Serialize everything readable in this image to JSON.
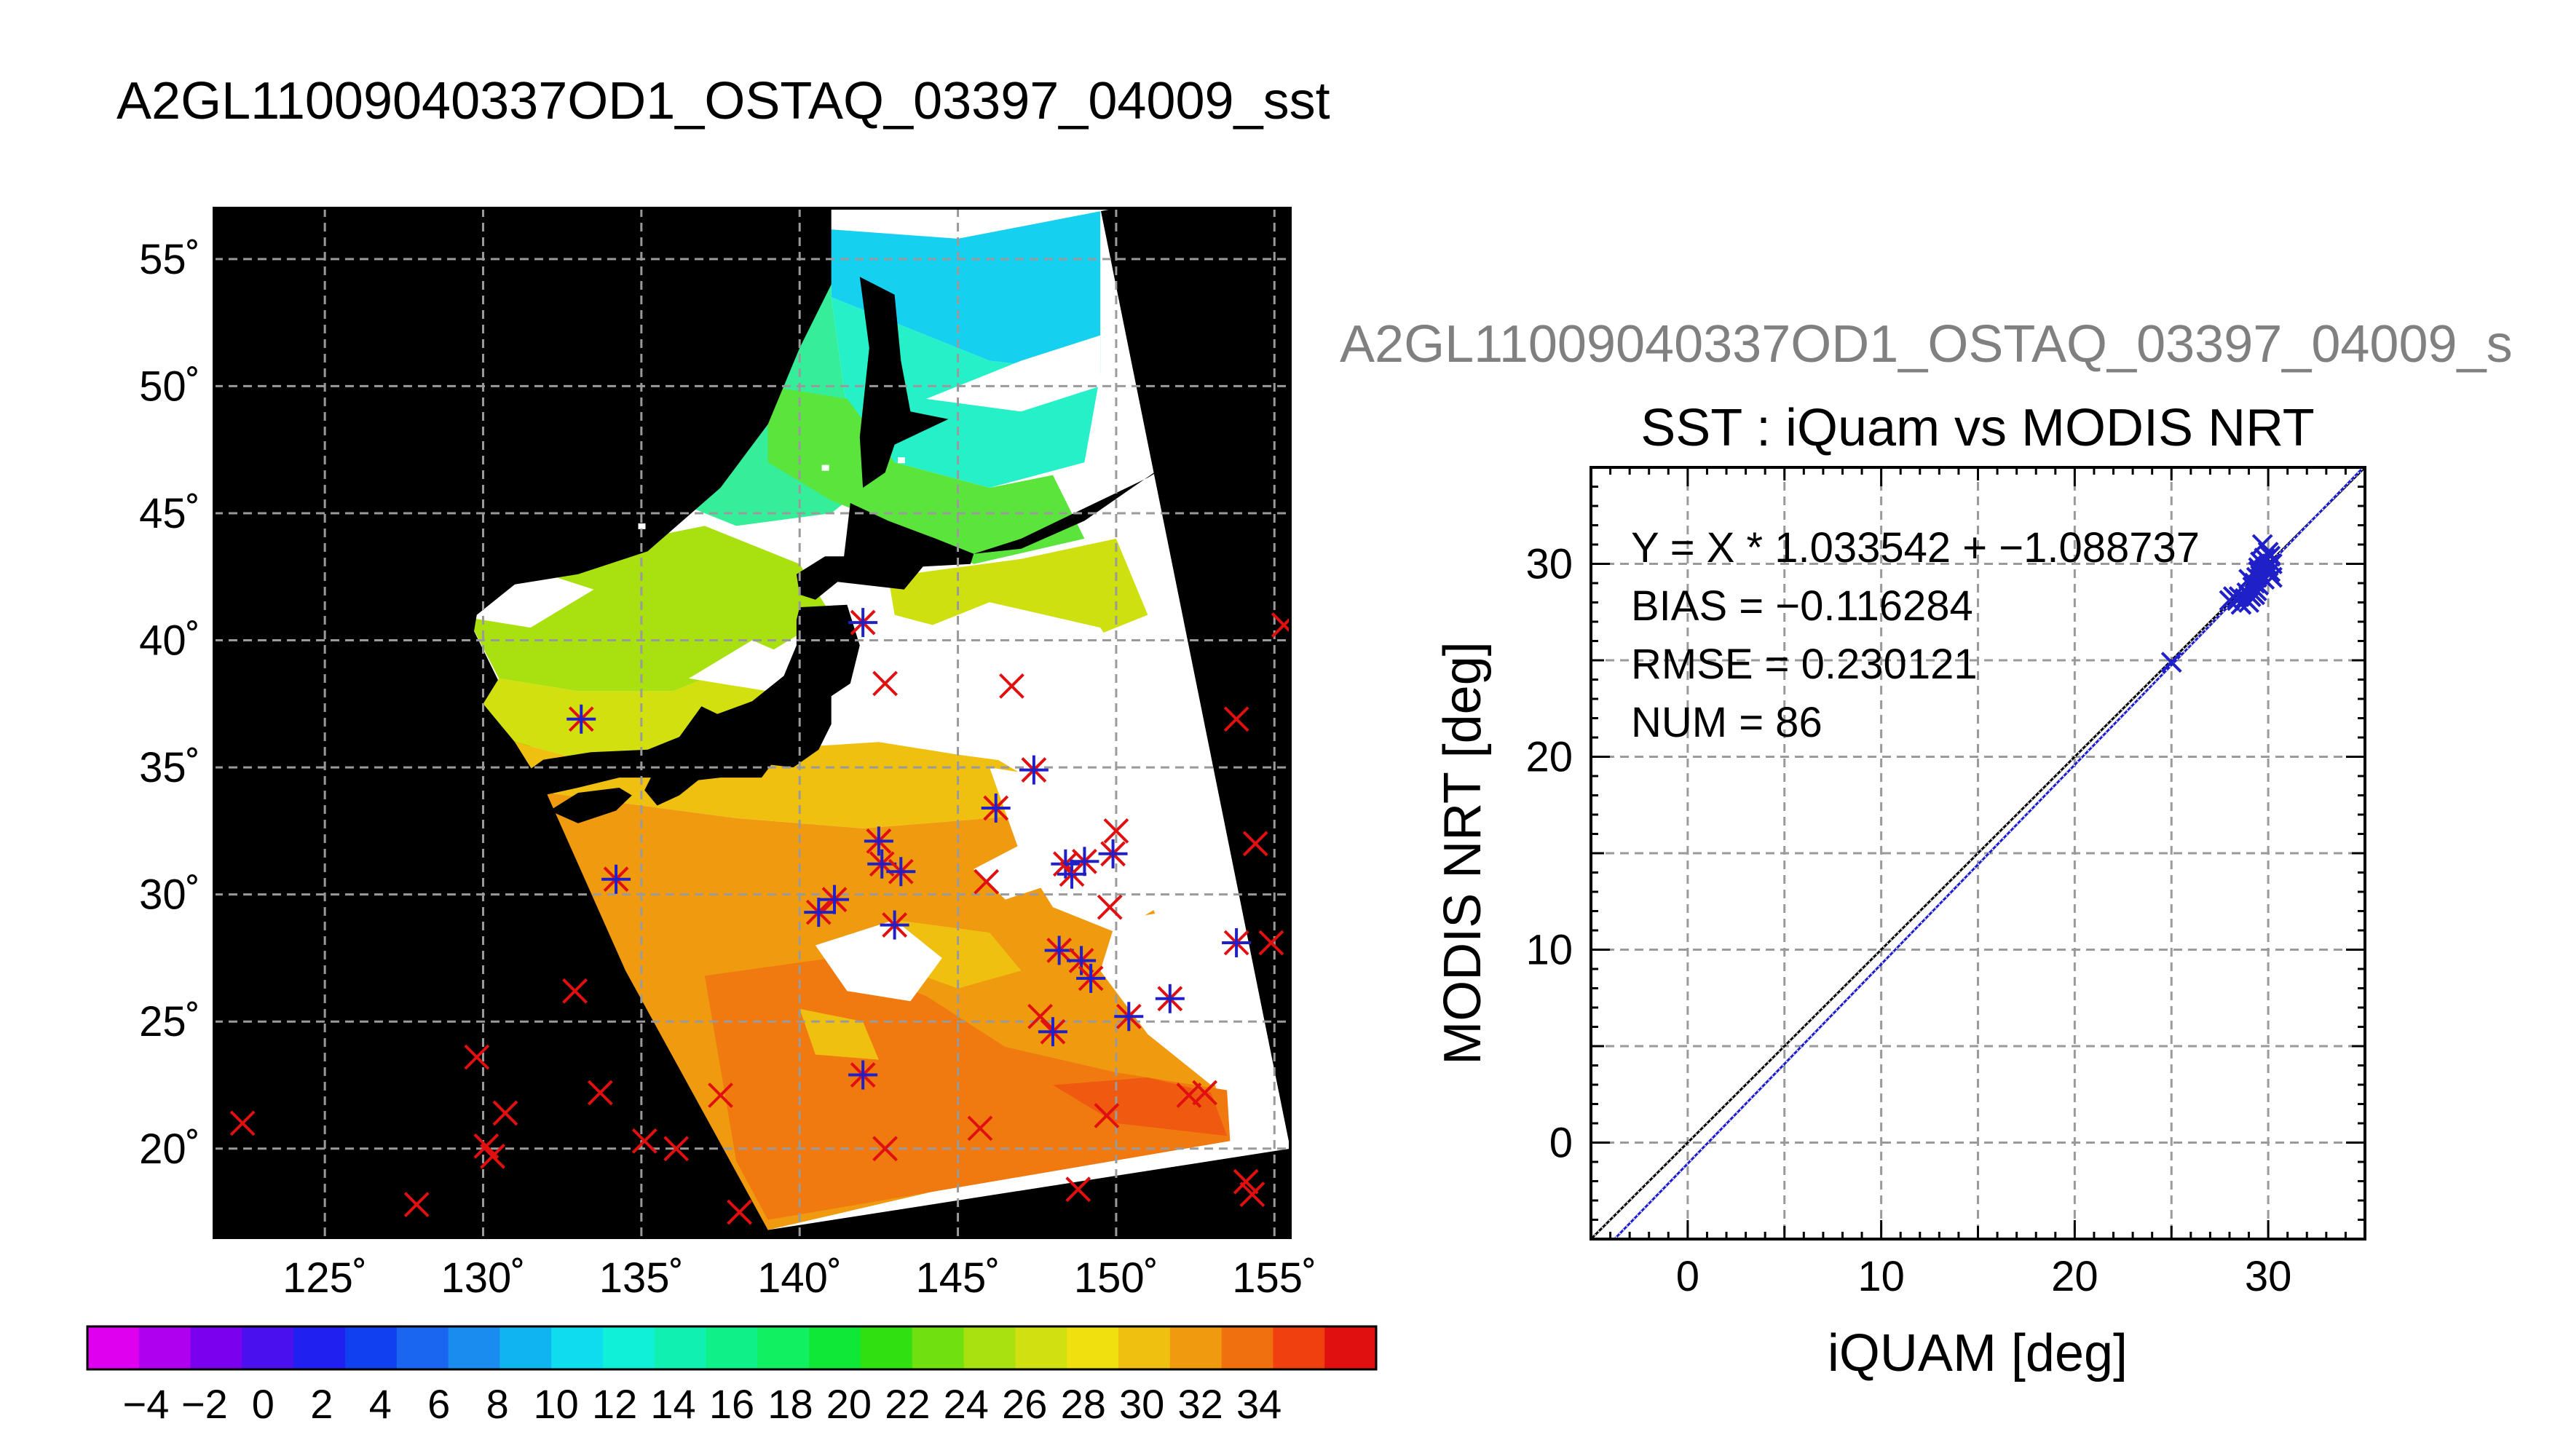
{
  "page": {
    "main_title": "A2GL11009040337OD1_OSTAQ_03397_04009_sst",
    "secondary_title": "A2GL11009040337OD1_OSTAQ_03397_04009_s"
  },
  "colors": {
    "background": "#ffffff",
    "map_background": "#000000",
    "grid": "#9a9a9a",
    "marker_red": "#e01010",
    "marker_blue": "#2020c8",
    "fit_line": "#1a1ad0",
    "identity_line": "#000000",
    "secondary_title": "#808080"
  },
  "colorbar": {
    "colors": [
      "#e000f0",
      "#b000f0",
      "#7a00ee",
      "#4a10ee",
      "#2020f0",
      "#1040f0",
      "#1a66f0",
      "#1a8cf0",
      "#10b4f0",
      "#10dcf0",
      "#10f0d8",
      "#10f0b0",
      "#10f088",
      "#10f060",
      "#10e838",
      "#30e010",
      "#70e010",
      "#a8e010",
      "#d0e010",
      "#f0e010",
      "#f0c010",
      "#f09a10",
      "#f07010",
      "#f04010",
      "#e01010"
    ],
    "tick_labels": [
      "−4",
      "−2",
      "0",
      "2",
      "4",
      "6",
      "8",
      "10",
      "12",
      "14",
      "16",
      "18",
      "20",
      "22",
      "24",
      "26",
      "28",
      "30",
      "32",
      "34"
    ]
  },
  "chart_data": [
    {
      "type": "map",
      "title": "A2GL11009040337OD1_OSTAQ_03397_04009_sst",
      "lon_range": [
        121.5,
        155.5
      ],
      "lat_range": [
        16.5,
        57.0
      ],
      "xtick_labels": [
        "125˚",
        "130˚",
        "135˚",
        "140˚",
        "145˚",
        "150˚",
        "155˚"
      ],
      "xticks": [
        125,
        130,
        135,
        140,
        145,
        150,
        155
      ],
      "ytick_labels": [
        "20˚",
        "25˚",
        "30˚",
        "35˚",
        "40˚",
        "45˚",
        "50˚",
        "55˚"
      ],
      "yticks": [
        20,
        25,
        30,
        35,
        40,
        45,
        50,
        55
      ],
      "grid": true,
      "variable": "sst",
      "swath_lonlat": [
        [
          129.5,
          40.9
        ],
        [
          141.0,
          57.0
        ],
        [
          149.5,
          57.0
        ],
        [
          155.5,
          20.0
        ],
        [
          139.0,
          16.8
        ]
      ],
      "markers_matched": [
        [
          142.0,
          40.7
        ],
        [
          133.1,
          36.9
        ],
        [
          147.4,
          34.9
        ],
        [
          146.2,
          33.4
        ],
        [
          142.5,
          32.1
        ],
        [
          142.6,
          31.2
        ],
        [
          143.2,
          30.9
        ],
        [
          134.2,
          30.6
        ],
        [
          141.1,
          29.8
        ],
        [
          140.6,
          29.3
        ],
        [
          143.0,
          28.8
        ],
        [
          148.4,
          31.2
        ],
        [
          148.6,
          30.8
        ],
        [
          149.0,
          31.3
        ],
        [
          149.9,
          31.6
        ],
        [
          148.2,
          27.8
        ],
        [
          148.9,
          27.4
        ],
        [
          149.2,
          26.7
        ],
        [
          150.4,
          25.2
        ],
        [
          151.7,
          25.9
        ],
        [
          153.8,
          28.1
        ],
        [
          148.0,
          24.6
        ],
        [
          142.0,
          22.9
        ]
      ],
      "markers_unmatched": [
        [
          155.3,
          40.6
        ],
        [
          153.8,
          36.9
        ],
        [
          142.7,
          38.3
        ],
        [
          146.7,
          38.2
        ],
        [
          154.4,
          32.0
        ],
        [
          154.9,
          28.1
        ],
        [
          145.9,
          30.5
        ],
        [
          149.8,
          29.5
        ],
        [
          150.0,
          32.5
        ],
        [
          147.6,
          25.2
        ],
        [
          132.9,
          26.2
        ],
        [
          129.8,
          23.6
        ],
        [
          133.7,
          22.2
        ],
        [
          137.5,
          22.1
        ],
        [
          130.7,
          21.4
        ],
        [
          130.1,
          20.1
        ],
        [
          130.3,
          19.7
        ],
        [
          135.1,
          20.3
        ],
        [
          136.1,
          20.0
        ],
        [
          138.1,
          17.5
        ],
        [
          127.9,
          17.8
        ],
        [
          122.4,
          21.0
        ],
        [
          142.7,
          20.0
        ],
        [
          145.7,
          20.8
        ],
        [
          149.7,
          21.3
        ],
        [
          152.3,
          22.1
        ],
        [
          152.8,
          22.2
        ],
        [
          154.1,
          18.7
        ],
        [
          154.3,
          18.2
        ],
        [
          148.8,
          18.4
        ]
      ]
    },
    {
      "type": "scatter",
      "secondary_title": "A2GL11009040337OD1_OSTAQ_03397_04009_s",
      "title": "SST : iQuam vs MODIS NRT",
      "xlabel": "iQUAM [deg]",
      "ylabel": "MODIS NRT [deg]",
      "xlim": [
        -5,
        35
      ],
      "ylim": [
        -5,
        35
      ],
      "xticks": [
        0,
        10,
        20,
        30
      ],
      "yticks": [
        0,
        10,
        20,
        30
      ],
      "grid": true,
      "stats": [
        "Y = X * 1.033542 + −1.088737",
        "BIAS = −0.116284",
        "RMSE = 0.230121",
        "NUM = 86"
      ],
      "fit": {
        "slope": 1.033542,
        "intercept": -1.088737
      },
      "identity_line": true,
      "points": [
        [
          25.0,
          24.9
        ],
        [
          28.0,
          28.1
        ],
        [
          28.2,
          28.3
        ],
        [
          28.4,
          28.1
        ],
        [
          28.5,
          28.3
        ],
        [
          28.6,
          27.9
        ],
        [
          28.8,
          28.2
        ],
        [
          28.9,
          28.5
        ],
        [
          29.0,
          28.0
        ],
        [
          29.1,
          28.3
        ],
        [
          29.2,
          28.8
        ],
        [
          29.3,
          29.0
        ],
        [
          29.3,
          28.4
        ],
        [
          29.4,
          29.3
        ],
        [
          29.5,
          29.6
        ],
        [
          29.5,
          28.9
        ],
        [
          29.6,
          30.1
        ],
        [
          29.6,
          29.4
        ],
        [
          29.7,
          30.0
        ],
        [
          29.7,
          31.0
        ],
        [
          29.8,
          29.7
        ],
        [
          29.8,
          29.2
        ],
        [
          29.9,
          30.2
        ],
        [
          30.0,
          29.5
        ],
        [
          30.0,
          29.9
        ],
        [
          30.1,
          30.4
        ],
        [
          30.1,
          29.6
        ],
        [
          30.2,
          29.3
        ],
        [
          30.2,
          30.0
        ],
        [
          29.4,
          28.6
        ],
        [
          29.0,
          29.2
        ],
        [
          29.5,
          29.8
        ],
        [
          30.0,
          30.6
        ],
        [
          29.8,
          30.3
        ]
      ]
    }
  ]
}
